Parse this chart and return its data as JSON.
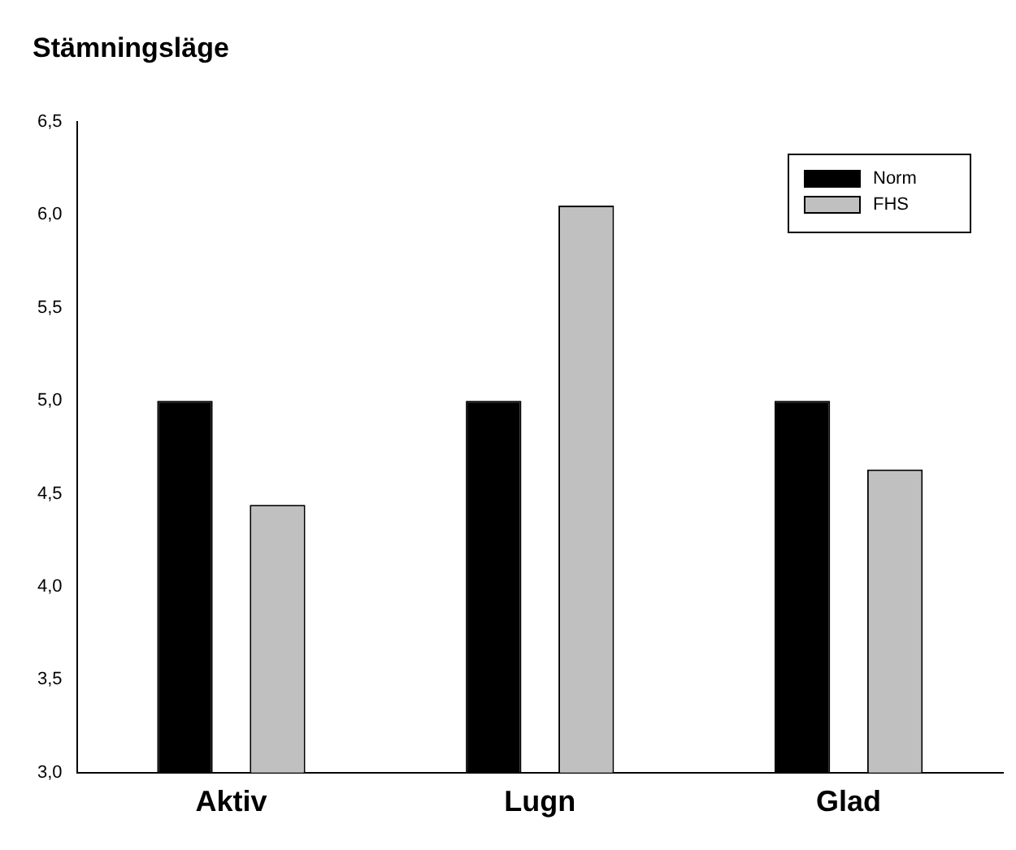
{
  "chart_data": {
    "type": "bar",
    "title": "Stämningsläge",
    "categories": [
      "Aktiv",
      "Lugn",
      "Glad"
    ],
    "series": [
      {
        "name": "Norm",
        "color": "#000000",
        "values": [
          5.0,
          5.0,
          5.0
        ]
      },
      {
        "name": "FHS",
        "color": "#c0c0c0",
        "values": [
          4.44,
          6.05,
          4.63
        ]
      }
    ],
    "ylim": [
      3.0,
      6.5
    ],
    "yticks": [
      {
        "value": 3.0,
        "label": "3,0"
      },
      {
        "value": 3.5,
        "label": "3,5"
      },
      {
        "value": 4.0,
        "label": "4,0"
      },
      {
        "value": 4.5,
        "label": "4,5"
      },
      {
        "value": 5.0,
        "label": "5,0"
      },
      {
        "value": 5.5,
        "label": "5,5"
      },
      {
        "value": 6.0,
        "label": "6,0"
      },
      {
        "value": 6.5,
        "label": "6,5"
      }
    ],
    "grid": false,
    "legend": "top right"
  }
}
